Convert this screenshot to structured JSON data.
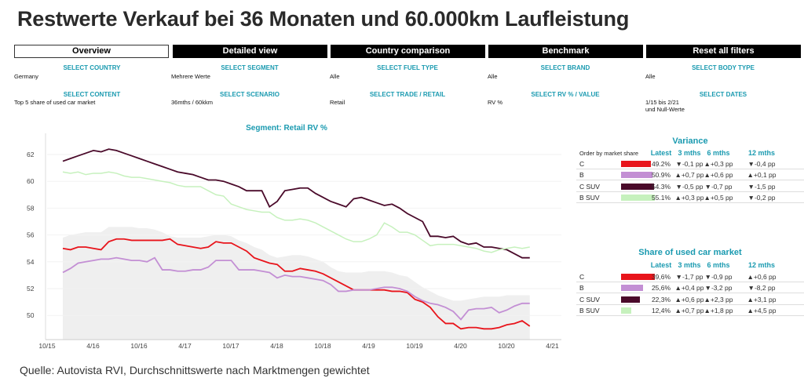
{
  "title": "Restwerte Verkauf bei 36 Monaten und 60.000km Laufleistung",
  "tabs": [
    {
      "label": "Overview",
      "active": true
    },
    {
      "label": "Detailed view"
    },
    {
      "label": "Country comparison"
    },
    {
      "label": "Benchmark"
    },
    {
      "label": "Reset all filters"
    }
  ],
  "filters": [
    {
      "label": "SELECT COUNTRY",
      "value": "Germany"
    },
    {
      "label": "SELECT SEGMENT",
      "value": "Mehrere Werte"
    },
    {
      "label": "SELECT FUEL TYPE",
      "value": "Alle"
    },
    {
      "label": "SELECT BRAND",
      "value": "Alle"
    },
    {
      "label": "SELECT BODY TYPE",
      "value": "Alle"
    },
    {
      "label": "SELECT CONTENT",
      "value": "Top 5 share of used car market"
    },
    {
      "label": "SELECT SCENARIO",
      "value": "36mths / 60kkm"
    },
    {
      "label": "SELECT TRADE / RETAIL",
      "value": "Retail"
    },
    {
      "label": "SELECT RV % / VALUE",
      "value": "RV %"
    },
    {
      "label": "SELECT DATES",
      "value": "1/15 bis 2/21",
      "value2": "und Null-Werte"
    }
  ],
  "chart_data": {
    "type": "line",
    "title": "Segment: Retail RV %",
    "x_start": "2016-01",
    "x_step": "month",
    "x_ticks": [
      "10/15",
      "4/16",
      "10/16",
      "4/17",
      "10/17",
      "4/18",
      "10/18",
      "4/19",
      "10/19",
      "4/20",
      "10/20",
      "4/21"
    ],
    "y_ticks": [
      50,
      52,
      54,
      56,
      58,
      60,
      62
    ],
    "ylim": [
      48.2,
      63.2
    ],
    "grid": "horizontal",
    "series": [
      {
        "name": "C SUV",
        "color": "#4a0a2a",
        "values": [
          61.5,
          61.7,
          61.9,
          62.1,
          62.3,
          62.2,
          62.4,
          62.3,
          62.1,
          61.9,
          61.7,
          61.5,
          61.3,
          61.1,
          60.9,
          60.7,
          60.6,
          60.5,
          60.3,
          60.1,
          60.1,
          60.0,
          59.8,
          59.6,
          59.3,
          59.3,
          59.3,
          58.1,
          58.5,
          59.3,
          59.4,
          59.5,
          59.5,
          59.1,
          58.8,
          58.5,
          58.3,
          58.1,
          58.7,
          58.8,
          58.6,
          58.4,
          58.2,
          58.3,
          58.0,
          57.6,
          57.3,
          57.0,
          55.9,
          55.9,
          55.8,
          55.9,
          55.5,
          55.3,
          55.4,
          55.1,
          55.1,
          55.0,
          54.9,
          54.6,
          54.3,
          54.3
        ]
      },
      {
        "name": "B SUV",
        "color": "#c6f1bd",
        "values": [
          60.7,
          60.6,
          60.7,
          60.5,
          60.6,
          60.6,
          60.7,
          60.6,
          60.4,
          60.3,
          60.3,
          60.2,
          60.1,
          60.0,
          59.9,
          59.7,
          59.6,
          59.6,
          59.6,
          59.3,
          59.0,
          58.9,
          58.3,
          58.1,
          57.9,
          57.8,
          57.7,
          57.7,
          57.3,
          57.1,
          57.1,
          57.2,
          57.1,
          56.9,
          56.6,
          56.3,
          56.0,
          55.7,
          55.5,
          55.5,
          55.7,
          56.0,
          56.9,
          56.6,
          56.2,
          56.2,
          56.0,
          55.6,
          55.2,
          55.3,
          55.3,
          55.3,
          55.2,
          55.1,
          55.0,
          54.8,
          54.7,
          54.9,
          55.0,
          55.1,
          55.0,
          55.1
        ]
      },
      {
        "name": "C",
        "color": "#e8141b",
        "values": [
          55.0,
          54.9,
          55.1,
          55.1,
          55.0,
          54.9,
          55.5,
          55.7,
          55.7,
          55.6,
          55.6,
          55.6,
          55.6,
          55.6,
          55.7,
          55.3,
          55.2,
          55.1,
          55.0,
          55.1,
          55.5,
          55.4,
          55.4,
          55.1,
          54.8,
          54.3,
          54.1,
          53.9,
          53.8,
          53.3,
          53.3,
          53.5,
          53.4,
          53.3,
          53.1,
          52.8,
          52.5,
          52.2,
          51.9,
          51.9,
          51.9,
          51.9,
          51.9,
          51.8,
          51.8,
          51.7,
          51.2,
          51.0,
          50.6,
          49.9,
          49.4,
          49.4,
          49.0,
          49.1,
          49.1,
          49.0,
          49.0,
          49.1,
          49.3,
          49.4,
          49.6,
          49.2
        ]
      },
      {
        "name": "B",
        "color": "#c38fd4",
        "values": [
          53.2,
          53.5,
          53.9,
          54.0,
          54.1,
          54.2,
          54.2,
          54.3,
          54.2,
          54.1,
          54.1,
          54.0,
          54.3,
          53.4,
          53.4,
          53.3,
          53.3,
          53.4,
          53.4,
          53.6,
          54.1,
          54.1,
          54.1,
          53.4,
          53.4,
          53.4,
          53.3,
          53.2,
          52.8,
          53.0,
          52.9,
          52.9,
          52.8,
          52.7,
          52.6,
          52.3,
          51.8,
          51.8,
          51.9,
          51.9,
          51.9,
          52.0,
          52.1,
          52.1,
          52.0,
          51.8,
          51.4,
          51.1,
          50.9,
          50.8,
          50.6,
          50.3,
          49.7,
          50.4,
          50.5,
          50.5,
          50.6,
          50.2,
          50.4,
          50.7,
          50.9,
          50.9
        ]
      }
    ],
    "band": {
      "color": "#efefef",
      "upper": [
        55.8,
        56.0,
        56.1,
        56.2,
        56.2,
        56.2,
        56.6,
        56.6,
        56.6,
        56.6,
        56.5,
        56.5,
        56.4,
        56.2,
        55.9,
        55.8,
        55.8,
        55.8,
        55.8,
        55.9,
        56.0,
        56.0,
        55.9,
        55.6,
        55.4,
        55.1,
        54.9,
        54.5,
        54.3,
        54.4,
        54.5,
        54.5,
        54.4,
        54.2,
        54.0,
        53.6,
        53.3,
        53.2,
        53.2,
        53.2,
        53.3,
        53.3,
        53.3,
        53.2,
        53.0,
        52.9,
        52.5,
        52.1,
        51.8,
        51.5,
        51.3,
        51.1,
        51.1,
        51.2,
        51.3,
        51.4,
        51.4,
        51.4,
        51.5,
        51.5,
        51.5,
        51.5
      ]
    }
  },
  "variance": {
    "title": "Variance",
    "order_label": "Order by market share",
    "headers": [
      "Latest",
      "3 mths",
      "6 mths",
      "12 mths"
    ],
    "rows": [
      {
        "label": "C",
        "color": "#e8141b",
        "value": 49.2,
        "cells": [
          "49.2%",
          "▼-0,1 pp",
          "▲+0,3 pp",
          "▼-0,4 pp"
        ]
      },
      {
        "label": "B",
        "color": "#c38fd4",
        "value": 50.9,
        "cells": [
          "50.9%",
          "▲+0,7 pp",
          "▲+0,6 pp",
          "▲+0,1 pp"
        ]
      },
      {
        "label": "C SUV",
        "color": "#4a0a2a",
        "value": 54.3,
        "cells": [
          "54.3%",
          "▼-0,5 pp",
          "▼-0,7 pp",
          "▼-1,5 pp"
        ]
      },
      {
        "label": "B SUV",
        "color": "#c6f1bd",
        "value": 55.1,
        "cells": [
          "55.1%",
          "▲+0,3 pp",
          "▲+0,5 pp",
          "▼-0,2 pp"
        ]
      }
    ]
  },
  "share": {
    "title": "Share of used car market",
    "headers": [
      "Latest",
      "3 mths",
      "6 mths",
      "12 mths"
    ],
    "rows": [
      {
        "label": "C",
        "color": "#e8141b",
        "value": 39.6,
        "cells": [
          "39,6%",
          "▼-1,7 pp",
          "▼-0,9 pp",
          "▲+0,6 pp"
        ]
      },
      {
        "label": "B",
        "color": "#c38fd4",
        "value": 25.6,
        "cells": [
          "25,6%",
          "▲+0,4 pp",
          "▼-3,2 pp",
          "▼-8,2 pp"
        ]
      },
      {
        "label": "C SUV",
        "color": "#4a0a2a",
        "value": 22.3,
        "cells": [
          "22,3%",
          "▲+0,6 pp",
          "▲+2,3 pp",
          "▲+3,1 pp"
        ]
      },
      {
        "label": "B SUV",
        "color": "#c6f1bd",
        "value": 12.4,
        "cells": [
          "12,4%",
          "▲+0,7 pp",
          "▲+1,8 pp",
          "▲+4,5 pp"
        ]
      }
    ]
  },
  "footer": "Quelle: Autovista RVI, Durchschnittswerte nach Marktmengen gewichtet"
}
